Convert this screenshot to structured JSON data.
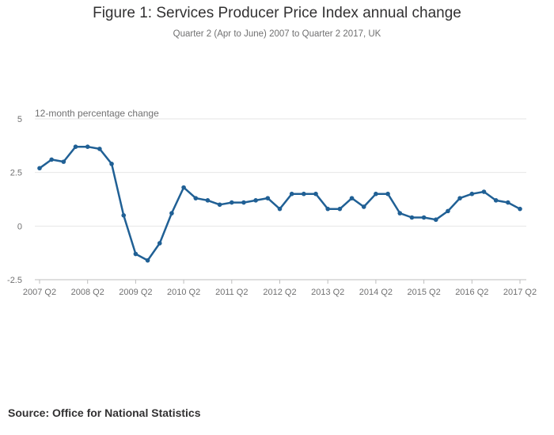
{
  "header": {
    "title": "Figure 1: Services Producer Price Index annual change",
    "subtitle": "Quarter 2 (Apr to June) 2007 to Quarter 2 2017, UK"
  },
  "footer": {
    "source": "Source: Office for National Statistics"
  },
  "colors": {
    "line": "#206095",
    "grid": "#e6e6e6",
    "axis": "#bdbdbd"
  },
  "chart_data": {
    "type": "line",
    "title": "Figure 1: Services Producer Price Index annual change",
    "subtitle": "Quarter 2 (Apr to June) 2007 to Quarter 2 2017, UK",
    "ylabel": "12-month percentage change",
    "xlabel": "",
    "ylim": [
      -2.5,
      5
    ],
    "yticks": [
      5,
      2.5,
      0,
      -2.5
    ],
    "ytick_labels": [
      "5",
      "2.5",
      "0",
      "-2.5"
    ],
    "xtick_labels": [
      "2007 Q2",
      "2008 Q2",
      "2009 Q2",
      "2010 Q2",
      "2011 Q2",
      "2012 Q2",
      "2013 Q2",
      "2014 Q2",
      "2015 Q2",
      "2016 Q2",
      "2017 Q2"
    ],
    "grid": true,
    "series": [
      {
        "name": "Services Producer Price Index annual change",
        "values": [
          2.7,
          3.1,
          3.0,
          3.7,
          3.7,
          3.6,
          2.9,
          0.5,
          -1.3,
          -1.6,
          -0.8,
          0.6,
          1.8,
          1.3,
          1.2,
          1.0,
          1.1,
          1.1,
          1.2,
          1.3,
          0.8,
          1.5,
          1.5,
          1.5,
          0.8,
          0.8,
          1.3,
          0.9,
          1.5,
          1.5,
          0.6,
          0.4,
          0.4,
          0.3,
          0.7,
          1.3,
          1.5,
          1.6,
          1.2,
          1.1,
          0.8
        ]
      }
    ]
  }
}
